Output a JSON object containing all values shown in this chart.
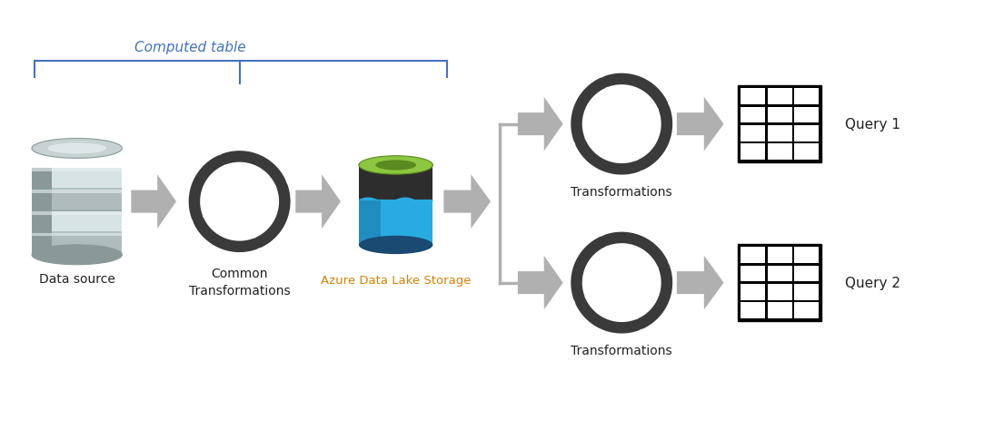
{
  "bg_color": "#ffffff",
  "computed_table_label": "Computed table",
  "computed_table_color": "#4472c4",
  "data_source_label": "Data source",
  "common_trans_label": "Common\nTransformations",
  "adls_label": "Azure Data Lake Storage",
  "adls_color": "#d4820a",
  "trans1_label": "Transformations",
  "trans2_label": "Transformations",
  "query1_label": "Query 1",
  "query2_label": "Query 2",
  "arrow_color": "#aaaaaa",
  "cycle_color": "#3a3a3a",
  "db_light": "#c8d2d2",
  "db_mid": "#b0bcbc",
  "db_dark": "#8a9898",
  "db_highlight": "#e8f0f0",
  "db_stripe": "#d8e4e4",
  "adls_body": "#2d2d2d",
  "adls_top": "#8dc63f",
  "adls_top_inner": "#5a8a20",
  "adls_water": "#29abe2",
  "adls_water_dark": "#1a7aaa",
  "adls_bottom": "#1a4a72"
}
